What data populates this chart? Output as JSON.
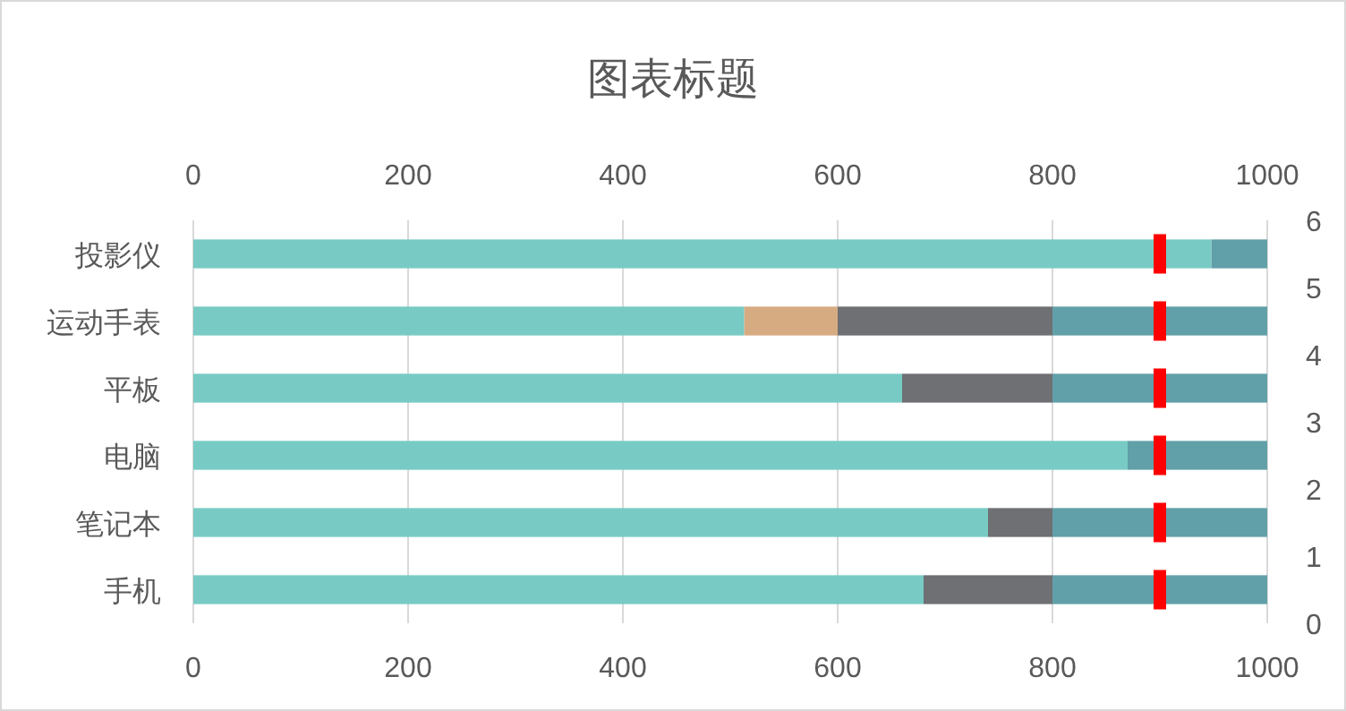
{
  "chart_data": {
    "type": "bar",
    "orientation": "horizontal",
    "stacked": true,
    "title": "图表标题",
    "categories": [
      "投影仪",
      "运动手表",
      "平板",
      "电脑",
      "笔记本",
      "手机"
    ],
    "series": [
      {
        "color": "#78cbc4",
        "values": [
          948,
          513,
          660,
          870,
          740,
          680
        ]
      },
      {
        "color": "#d7ab82",
        "values": [
          null,
          87,
          null,
          null,
          null,
          null
        ]
      },
      {
        "color": "#6e7074",
        "values": [
          null,
          200,
          140,
          null,
          60,
          120
        ]
      },
      {
        "color": "#61a0a8",
        "values": [
          52,
          200,
          200,
          130,
          200,
          200
        ]
      },
      {
        "type": "scatter",
        "color": "#ff0000",
        "marker": "square",
        "values": [
          900,
          900,
          900,
          900,
          900,
          900
        ]
      }
    ],
    "xlim": [
      0,
      1000
    ],
    "xticks": [
      0,
      200,
      400,
      600,
      800,
      1000
    ],
    "x2lim": [
      0,
      1000
    ],
    "x2ticks": [
      0,
      200,
      400,
      600,
      800,
      1000
    ],
    "y2lim": [
      0,
      6
    ],
    "y2ticks": [
      0,
      1,
      2,
      3,
      4,
      5,
      6
    ],
    "grid": "x"
  }
}
